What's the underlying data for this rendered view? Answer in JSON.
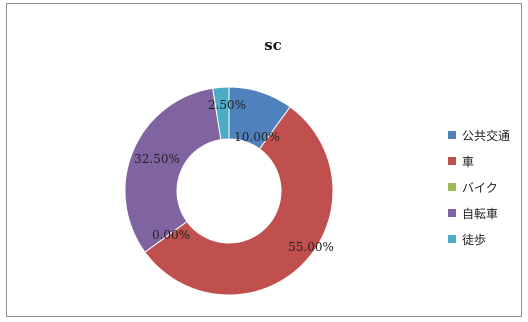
{
  "chart_data": {
    "type": "pie",
    "variant": "doughnut",
    "title": "sc",
    "categories": [
      "公共交通",
      "車",
      "バイク",
      "自転車",
      "徒歩"
    ],
    "values": [
      10.0,
      55.0,
      0.0,
      32.5,
      2.5
    ],
    "data_labels": [
      "10.00%",
      "55.00%",
      "0.00%",
      "32.50%",
      "2.50%"
    ],
    "colors": [
      "#4f81bd",
      "#c0504d",
      "#9bbb59",
      "#8064a2",
      "#4bacc6"
    ],
    "legend_position": "right",
    "start_angle_deg": 0,
    "direction": "clockwise"
  }
}
